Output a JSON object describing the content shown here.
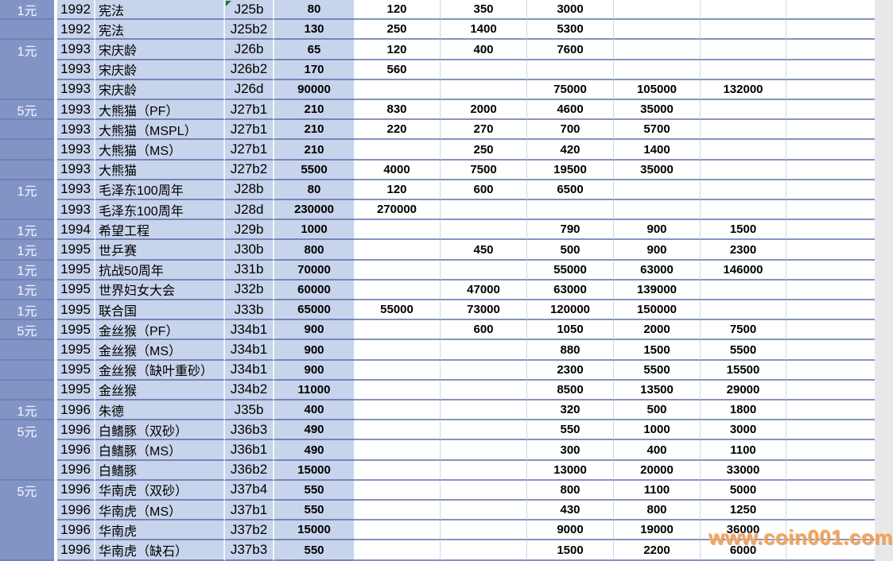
{
  "app": "spreadsheet-coin-price-table",
  "watermark": {
    "text": "www.coin001.com",
    "color": "#F0A15F"
  },
  "flags": {
    "cell_error_flag": "green-triangle-icon",
    "flag_cell_code": "J25b"
  },
  "colors": {
    "denomination_column_bg": "#8294C6",
    "light_blue_cells": "#C7D4EB",
    "grid_line": "#7585B8",
    "value_cell_bg": "#FFFFFF"
  },
  "table": {
    "visible_headers": [],
    "columns_semantic": [
      "denomination",
      "year",
      "coin_name",
      "catalog_code",
      "price_a",
      "price_b",
      "price_c",
      "price_d",
      "price_e",
      "price_f",
      "empty"
    ],
    "rows": [
      {
        "denom": "1元",
        "year": "1992",
        "name": "宪法",
        "code": "J25b",
        "prices": [
          "80",
          "120",
          "350",
          "3000",
          "",
          ""
        ],
        "merge_down": false
      },
      {
        "denom": "",
        "year": "1992",
        "name": "宪法",
        "code": "J25b2",
        "prices": [
          "130",
          "250",
          "1400",
          "5300",
          "",
          ""
        ],
        "merge_down": false
      },
      {
        "denom": "1元",
        "year": "1993",
        "name": "宋庆龄",
        "code": "J26b",
        "prices": [
          "65",
          "120",
          "400",
          "7600",
          "",
          ""
        ],
        "merge_down": true
      },
      {
        "denom": "",
        "year": "1993",
        "name": "宋庆龄",
        "code": "J26b2",
        "prices": [
          "170",
          "560",
          "",
          "",
          "",
          ""
        ],
        "merge_down": true
      },
      {
        "denom": "",
        "year": "1993",
        "name": "宋庆龄",
        "code": "J26d",
        "prices": [
          "90000",
          "",
          "",
          "75000",
          "105000",
          "132000"
        ],
        "merge_down": false
      },
      {
        "denom": "5元",
        "year": "1993",
        "name": "大熊猫（PF）",
        "code": "J27b1",
        "prices": [
          "210",
          "830",
          "2000",
          "4600",
          "35000",
          ""
        ],
        "merge_down": false
      },
      {
        "denom": "",
        "year": "1993",
        "name": "大熊猫（MSPL）",
        "code": "J27b1",
        "prices": [
          "210",
          "220",
          "270",
          "700",
          "5700",
          ""
        ],
        "merge_down": false
      },
      {
        "denom": "",
        "year": "1993",
        "name": "大熊猫（MS）",
        "code": "J27b1",
        "prices": [
          "210",
          "",
          "250",
          "420",
          "1400",
          ""
        ],
        "merge_down": false
      },
      {
        "denom": "",
        "year": "1993",
        "name": "大熊猫",
        "code": "J27b2",
        "prices": [
          "5500",
          "4000",
          "7500",
          "19500",
          "35000",
          ""
        ],
        "merge_down": false
      },
      {
        "denom": "1元",
        "year": "1993",
        "name": "毛泽东100周年",
        "code": "J28b",
        "prices": [
          "80",
          "120",
          "600",
          "6500",
          "",
          ""
        ],
        "merge_down": true
      },
      {
        "denom": "",
        "year": "1993",
        "name": "毛泽东100周年",
        "code": "J28d",
        "prices": [
          "230000",
          "270000",
          "",
          "",
          "",
          ""
        ],
        "merge_down": false
      },
      {
        "denom": "1元",
        "year": "1994",
        "name": "希望工程",
        "code": "J29b",
        "prices": [
          "1000",
          "",
          "",
          "790",
          "900",
          "1500"
        ],
        "merge_down": false
      },
      {
        "denom": "1元",
        "year": "1995",
        "name": "世乒赛",
        "code": "J30b",
        "prices": [
          "800",
          "",
          "450",
          "500",
          "900",
          "2300"
        ],
        "merge_down": false
      },
      {
        "denom": "1元",
        "year": "1995",
        "name": "抗战50周年",
        "code": "J31b",
        "prices": [
          "70000",
          "",
          "",
          "55000",
          "63000",
          "146000"
        ],
        "merge_down": false
      },
      {
        "denom": "1元",
        "year": "1995",
        "name": "世界妇女大会",
        "code": "J32b",
        "prices": [
          "60000",
          "",
          "47000",
          "63000",
          "139000",
          ""
        ],
        "merge_down": false
      },
      {
        "denom": "1元",
        "year": "1995",
        "name": "联合国",
        "code": "J33b",
        "prices": [
          "65000",
          "55000",
          "73000",
          "120000",
          "150000",
          ""
        ],
        "merge_down": false
      },
      {
        "denom": "5元",
        "year": "1995",
        "name": "金丝猴（PF）",
        "code": "J34b1",
        "prices": [
          "900",
          "",
          "600",
          "1050",
          "2000",
          "7500"
        ],
        "merge_down": false
      },
      {
        "denom": "",
        "year": "1995",
        "name": "金丝猴（MS）",
        "code": "J34b1",
        "prices": [
          "900",
          "",
          "",
          "880",
          "1500",
          "5500"
        ],
        "merge_down": false
      },
      {
        "denom": "",
        "year": "1995",
        "name": "金丝猴（缺叶重砂）",
        "code": "J34b1",
        "prices": [
          "900",
          "",
          "",
          "2300",
          "5500",
          "15500"
        ],
        "merge_down": false
      },
      {
        "denom": "",
        "year": "1995",
        "name": "金丝猴",
        "code": "J34b2",
        "prices": [
          "11000",
          "",
          "",
          "8500",
          "13500",
          "29000"
        ],
        "merge_down": false
      },
      {
        "denom": "1元",
        "year": "1996",
        "name": "朱德",
        "code": "J35b",
        "prices": [
          "400",
          "",
          "",
          "320",
          "500",
          "1800"
        ],
        "merge_down": false
      },
      {
        "denom": "5元",
        "year": "1996",
        "name": "白鳍豚（双砂）",
        "code": "J36b3",
        "prices": [
          "490",
          "",
          "",
          "550",
          "1000",
          "3000"
        ],
        "merge_down": true
      },
      {
        "denom": "",
        "year": "1996",
        "name": "白鳍豚（MS）",
        "code": "J36b1",
        "prices": [
          "490",
          "",
          "",
          "300",
          "400",
          "1100"
        ],
        "merge_down": true
      },
      {
        "denom": "",
        "year": "1996",
        "name": "白鳍豚",
        "code": "J36b2",
        "prices": [
          "15000",
          "",
          "",
          "13000",
          "20000",
          "33000"
        ],
        "merge_down": false
      },
      {
        "denom": "5元",
        "year": "1996",
        "name": "华南虎（双砂）",
        "code": "J37b4",
        "prices": [
          "550",
          "",
          "",
          "800",
          "1100",
          "5000"
        ],
        "merge_down": true
      },
      {
        "denom": "",
        "year": "1996",
        "name": "华南虎（MS）",
        "code": "J37b1",
        "prices": [
          "550",
          "",
          "",
          "430",
          "800",
          "1250"
        ],
        "merge_down": true
      },
      {
        "denom": "",
        "year": "1996",
        "name": "华南虎",
        "code": "J37b2",
        "prices": [
          "15000",
          "",
          "",
          "9000",
          "19000",
          "36000"
        ],
        "merge_down": true
      },
      {
        "denom": "",
        "year": "1996",
        "name": "华南虎（缺石）",
        "code": "J37b3",
        "prices": [
          "550",
          "",
          "",
          "1500",
          "2200",
          "6000"
        ],
        "merge_down": false
      }
    ]
  }
}
